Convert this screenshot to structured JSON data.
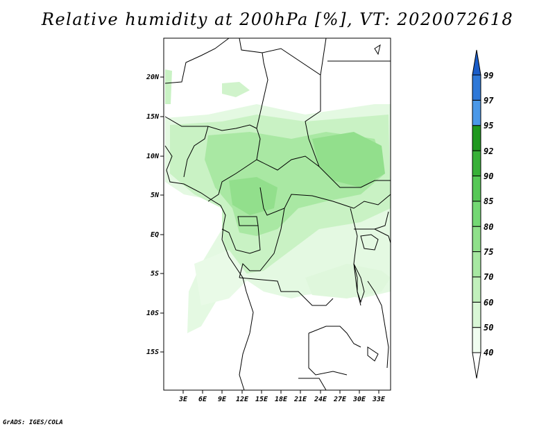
{
  "title": "Relative humidity at 200hPa [%], VT: 2020072618",
  "credit": "GrADS: IGES/COLA",
  "map": {
    "lat_labels": [
      "20N",
      "15N",
      "10N",
      "5N",
      "EQ",
      "5S",
      "10S",
      "15S"
    ],
    "lon_labels": [
      "3E",
      "6E",
      "9E",
      "12E",
      "15E",
      "18E",
      "21E",
      "24E",
      "27E",
      "30E",
      "33E"
    ]
  },
  "colorbar": {
    "labels": [
      "40",
      "50",
      "60",
      "70",
      "75",
      "80",
      "85",
      "90",
      "92",
      "95",
      "97",
      "99"
    ],
    "colors": [
      "#f0fdf0",
      "#d9f7d6",
      "#c1f0bc",
      "#a7e8a2",
      "#8fe08a",
      "#74d874",
      "#56c856",
      "#38b038",
      "#1f981f",
      "#4a98e8",
      "#2e78d8",
      "#1a5cc8"
    ]
  }
}
